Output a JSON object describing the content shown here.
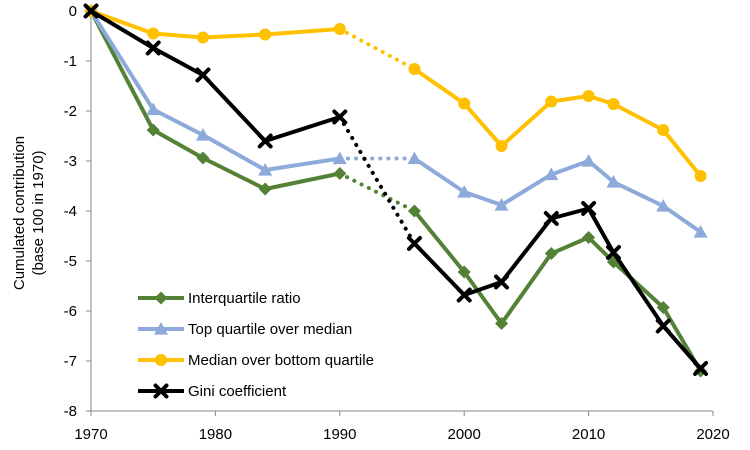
{
  "chart_data": {
    "type": "line",
    "title": "",
    "xlabel": "",
    "ylabel_lines": [
      "Cumulated contribution",
      "(base 100 in 1970)"
    ],
    "xlim": [
      1970,
      2020
    ],
    "ylim": [
      -8,
      0
    ],
    "x_ticks": [
      1970,
      1980,
      1990,
      2000,
      2010,
      2020
    ],
    "y_ticks": [
      0,
      -1,
      -2,
      -3,
      -4,
      -5,
      -6,
      -7,
      -8
    ],
    "grid": false,
    "legend_position": "bottom-left",
    "dotted_gap": [
      1990,
      1996
    ],
    "series": [
      {
        "name": "Interquartile ratio",
        "color": "#538135",
        "marker": "diamond",
        "x": [
          1970,
          1975,
          1979,
          1984,
          1990,
          1996,
          2000,
          2003,
          2007,
          2010,
          2012,
          2016,
          2019
        ],
        "y": [
          0,
          -2.38,
          -2.94,
          -3.56,
          -3.25,
          -4.0,
          -5.22,
          -6.25,
          -4.85,
          -4.53,
          -5.02,
          -5.93,
          -7.2
        ]
      },
      {
        "name": "Top quartile over median",
        "color": "#8eaadb",
        "marker": "triangle",
        "x": [
          1970,
          1975,
          1979,
          1984,
          1990,
          1996,
          2000,
          2003,
          2007,
          2010,
          2012,
          2016,
          2019
        ],
        "y": [
          0,
          -1.97,
          -2.48,
          -3.18,
          -2.95,
          -2.95,
          -3.62,
          -3.88,
          -3.27,
          -3.0,
          -3.42,
          -3.9,
          -4.42
        ]
      },
      {
        "name": "Median over bottom quartile",
        "color": "#ffc000",
        "marker": "circle",
        "x": [
          1970,
          1975,
          1979,
          1984,
          1990,
          1996,
          2000,
          2003,
          2007,
          2010,
          2012,
          2016,
          2019
        ],
        "y": [
          0,
          -0.45,
          -0.53,
          -0.47,
          -0.36,
          -1.16,
          -1.85,
          -2.7,
          -1.81,
          -1.7,
          -1.86,
          -2.38,
          -3.3
        ]
      },
      {
        "name": "Gini coefficient",
        "color": "#000000",
        "marker": "x",
        "x": [
          1970,
          1975,
          1979,
          1984,
          1990,
          1996,
          2000,
          2003,
          2007,
          2010,
          2012,
          2016,
          2019
        ],
        "y": [
          0,
          -0.74,
          -1.28,
          -2.6,
          -2.12,
          -4.65,
          -5.68,
          -5.42,
          -4.15,
          -3.95,
          -4.83,
          -6.3,
          -7.15
        ]
      }
    ]
  }
}
